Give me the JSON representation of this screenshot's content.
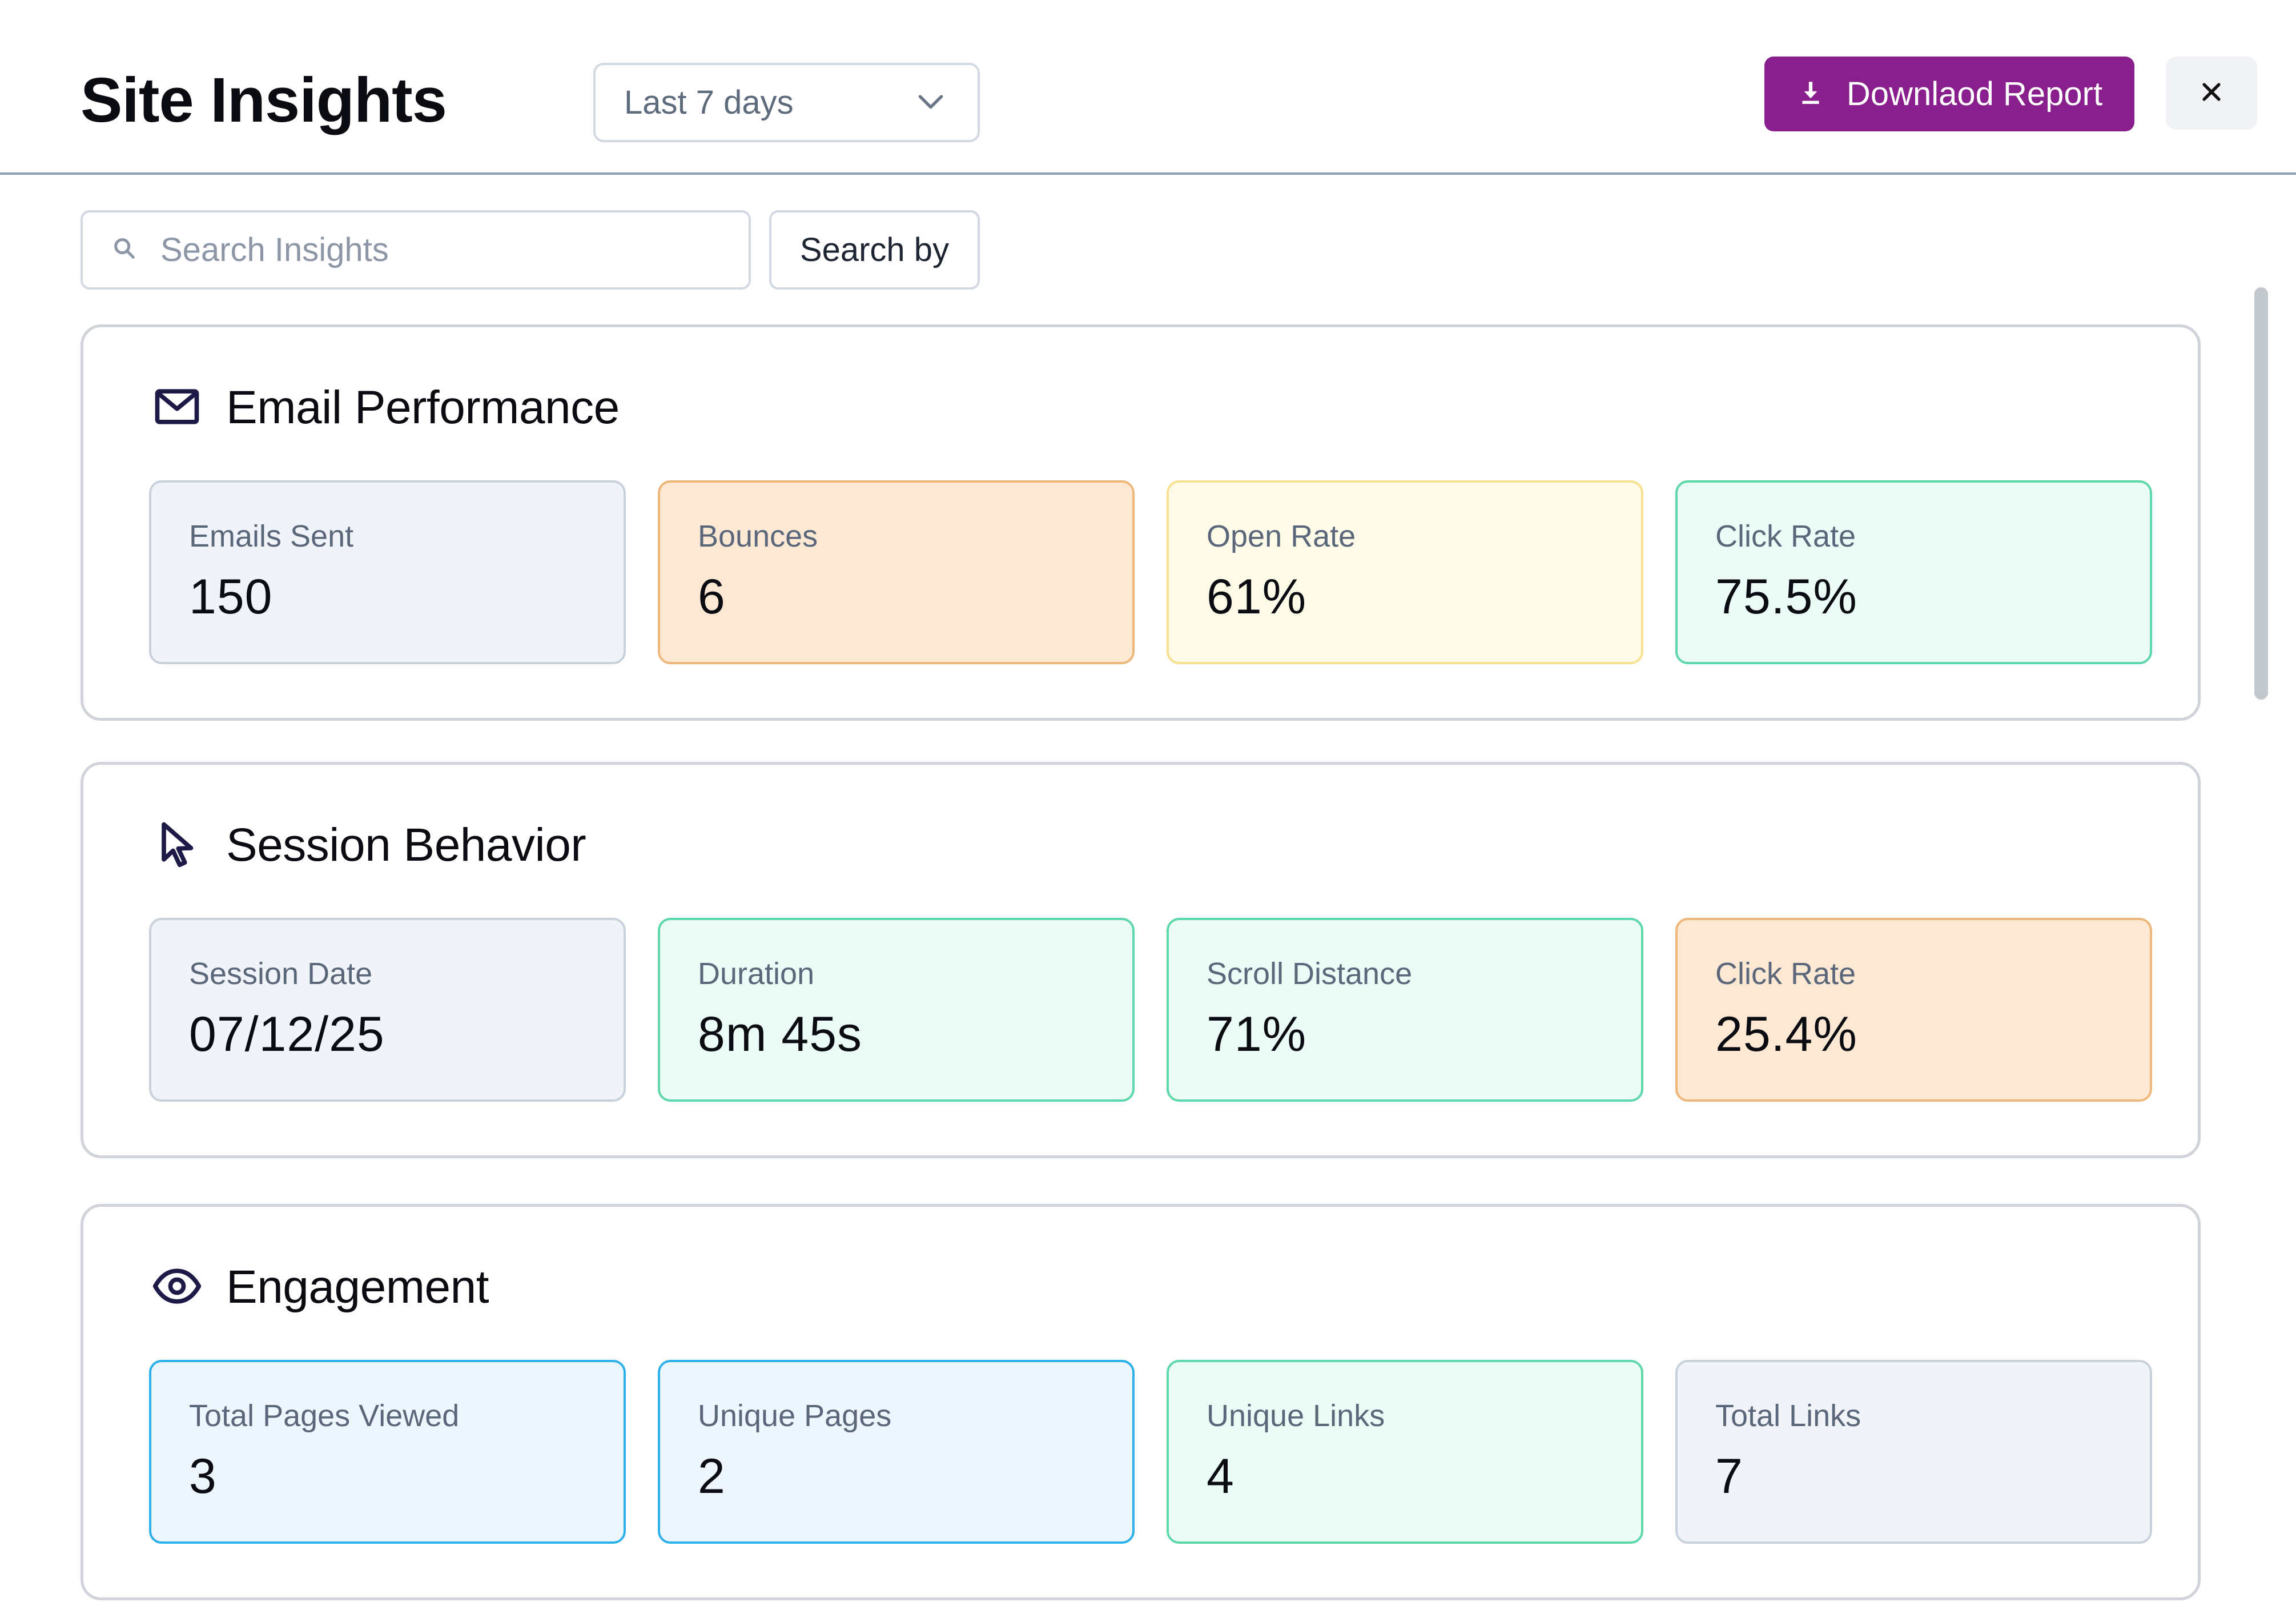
{
  "header": {
    "title": "Site Insights",
    "range_select": {
      "value": "Last 7 days",
      "icon": "chevron-down-icon"
    },
    "download_button": {
      "label": "Downlaod Report",
      "icon": "download-icon",
      "color": "#891f8d"
    },
    "close_button": {
      "icon": "close-icon"
    }
  },
  "search": {
    "placeholder": "Search Insights",
    "value": "",
    "icon": "search-icon",
    "search_by_label": "Search by"
  },
  "sections": [
    {
      "title": "Email Performance",
      "icon": "mail-icon",
      "tiles": [
        {
          "label": "Emails Sent",
          "value": "150",
          "color": "gray"
        },
        {
          "label": "Bounces",
          "value": "6",
          "color": "orange"
        },
        {
          "label": "Open Rate",
          "value": "61%",
          "color": "yellow"
        },
        {
          "label": "Click Rate",
          "value": "75.5%",
          "color": "green"
        }
      ]
    },
    {
      "title": "Session Behavior",
      "icon": "cursor-icon",
      "tiles": [
        {
          "label": "Session Date",
          "value": "07/12/25",
          "color": "gray"
        },
        {
          "label": "Duration",
          "value": "8m 45s",
          "color": "green"
        },
        {
          "label": "Scroll Distance",
          "value": "71%",
          "color": "green"
        },
        {
          "label": "Click Rate",
          "value": "25.4%",
          "color": "orange"
        }
      ]
    },
    {
      "title": "Engagement",
      "icon": "eye-icon",
      "tiles": [
        {
          "label": "Total Pages Viewed",
          "value": "3",
          "color": "blue"
        },
        {
          "label": "Unique Pages",
          "value": "2",
          "color": "blue"
        },
        {
          "label": "Unique Links",
          "value": "4",
          "color": "green"
        },
        {
          "label": "Total Links",
          "value": "7",
          "color": "gray"
        }
      ]
    }
  ],
  "colors": {
    "gray": "#f0f3f8",
    "orange": "#fde8d4",
    "yellow": "#fefae8",
    "green": "#ebfbf5",
    "blue": "#eef6fd"
  }
}
